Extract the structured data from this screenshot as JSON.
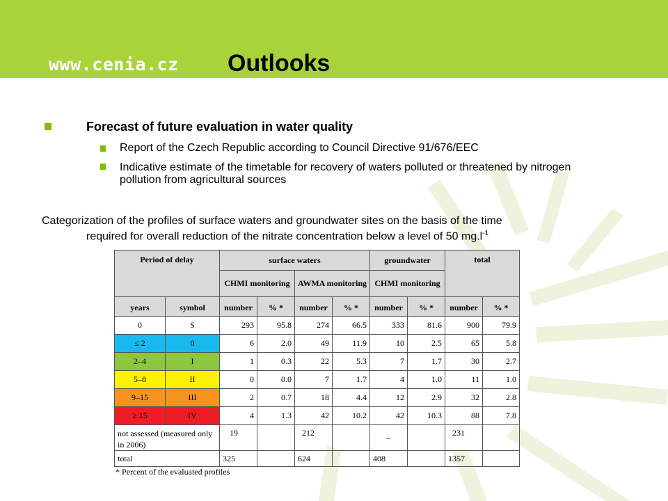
{
  "header": {
    "logo_text": "www.cenia.cz",
    "title": "Outlooks",
    "banner_color": "#a9d33a"
  },
  "bullets": {
    "main": "Forecast of future evaluation in water quality",
    "sub": [
      "Report of the Czech Republic according to Council Directive 91/676/EEC",
      "Indicative estimate of the timetable for recovery of waters polluted or threatened by nitrogen pollution from agricultural sources"
    ],
    "bullet_color": "#82bc00"
  },
  "caption": {
    "line1": "Categorization of the profiles of surface waters and groundwater sites on the basis of the time",
    "line2_main": "required for overall reduction of the nitrate concentration below a level of 50 mg.l",
    "line2_sup": "-1"
  },
  "table": {
    "headers": {
      "period": "Period of delay",
      "surface": "surface waters",
      "ground": "groundwater",
      "total": "total",
      "chmi": "CHMI monitoring",
      "awma": "AWMA monitoring",
      "chmi_gw": "CHMI monitoring",
      "years": "years",
      "symbol": "symbol",
      "number": "number",
      "percent": "% *"
    },
    "rows": [
      {
        "years": "0",
        "symbol": "S",
        "values": [
          "293",
          "95.8",
          "274",
          "66.5",
          "333",
          "81.6",
          "900",
          "79.9"
        ],
        "color": ""
      },
      {
        "years": "≤ 2",
        "symbol": "0",
        "values": [
          "6",
          "2.0",
          "49",
          "11.9",
          "10",
          "2.5",
          "65",
          "5.8"
        ],
        "color": "#19b9ef"
      },
      {
        "years": "2–4",
        "symbol": "I",
        "values": [
          "1",
          "0.3",
          "22",
          "5.3",
          "7",
          "1.7",
          "30",
          "2.7"
        ],
        "color": "#8dc63f"
      },
      {
        "years": "5–8",
        "symbol": "II",
        "values": [
          "0",
          "0.0",
          "7",
          "1.7",
          "4",
          "1.0",
          "11",
          "1.0"
        ],
        "color": "#fff200"
      },
      {
        "years": "9–15",
        "symbol": "III",
        "values": [
          "2",
          "0.7",
          "18",
          "4.4",
          "12",
          "2.9",
          "32",
          "2.8"
        ],
        "color": "#f7931e"
      },
      {
        "years": "≥ 15",
        "symbol": "IV",
        "values": [
          "4",
          "1.3",
          "42",
          "10.2",
          "42",
          "10.3",
          "88",
          "7.8"
        ],
        "color": "#ee1c25"
      }
    ],
    "not_assessed": {
      "label": "not assessed (measured only in 2006)",
      "values": [
        "19",
        "",
        "212",
        "",
        "–",
        "",
        "231",
        ""
      ]
    },
    "total": {
      "label": "total",
      "values": [
        "325",
        "",
        "624",
        "",
        "408",
        "",
        "1357",
        ""
      ]
    },
    "footnote": "* Percent of the evaluated profiles"
  }
}
